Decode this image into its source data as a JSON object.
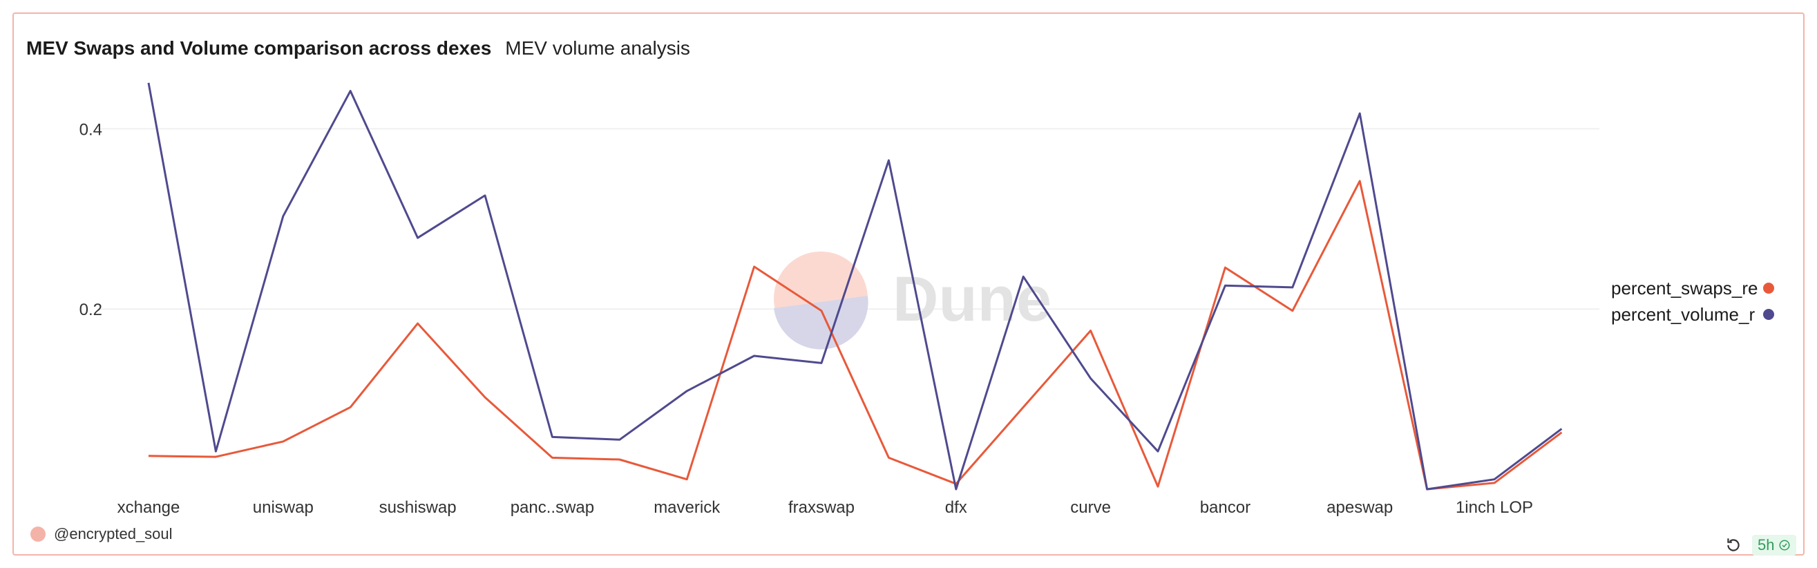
{
  "header": {
    "title": "MEV Swaps and Volume comparison across dexes",
    "subtitle": "MEV volume analysis"
  },
  "watermark": {
    "text": "Dune"
  },
  "footer": {
    "user": "@encrypted_soul",
    "age": "5h"
  },
  "colors": {
    "swaps": "#e8593a",
    "volume": "#4f4a8e",
    "grid": "#ececec",
    "watermark_red": "#fbd9d1",
    "watermark_blue": "#d6d6e8",
    "watermark_text": "#e3e3e3"
  },
  "chart_data": {
    "type": "line",
    "categories": [
      "xchange",
      "",
      "uniswap",
      "",
      "sushiswap",
      "",
      "panc..swap",
      "",
      "maverick",
      "",
      "fraxswap",
      "",
      "dfx",
      "",
      "curve",
      "",
      "bancor",
      "",
      "apeswap",
      "",
      "1inch LOP",
      ""
    ],
    "series": [
      {
        "name": "percent_swaps_re",
        "values": [
          0.037,
          0.036,
          0.053,
          0.091,
          0.184,
          0.102,
          0.035,
          0.033,
          0.011,
          0.247,
          0.198,
          0.035,
          0.006,
          0.091,
          0.176,
          0.003,
          0.246,
          0.198,
          0.342,
          0.0,
          0.007,
          0.063
        ]
      },
      {
        "name": "percent_volume_r",
        "values": [
          0.451,
          0.042,
          0.303,
          0.442,
          0.279,
          0.326,
          0.058,
          0.055,
          0.109,
          0.148,
          0.14,
          0.365,
          0.0,
          0.236,
          0.123,
          0.042,
          0.226,
          0.224,
          0.417,
          0.0,
          0.011,
          0.067
        ]
      }
    ],
    "yticks": [
      0.2,
      0.4
    ],
    "ylim": [
      0,
      0.46
    ],
    "grid": true,
    "legend_position": "right"
  }
}
